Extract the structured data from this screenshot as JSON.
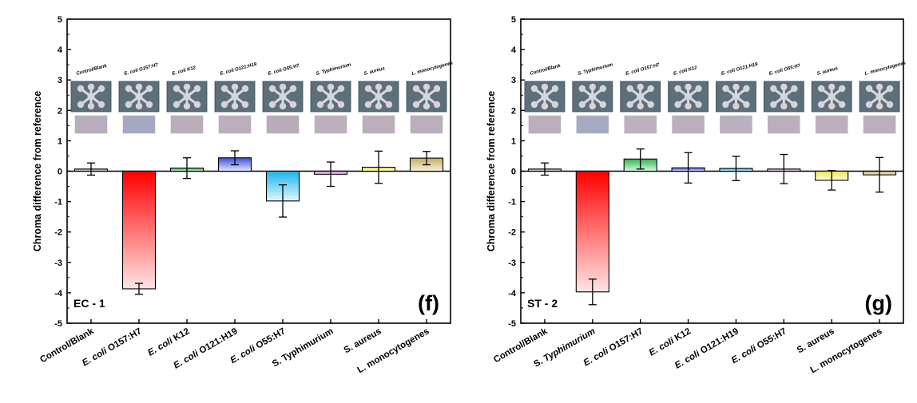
{
  "chart_data": [
    {
      "type": "bar",
      "panel_label": "(f)",
      "sample_label": "EC - 1",
      "ylabel": "Chroma difference from reference",
      "ylim": [
        -5,
        5
      ],
      "yticks": [
        -5,
        -4,
        -3,
        -2,
        -1,
        0,
        1,
        2,
        3,
        4,
        5
      ],
      "categories": [
        "Control/Blank",
        "E. coli O157:H7",
        "E. coli K12",
        "E. coli O121:H19",
        "E. coli O55:H7",
        "S. Typhimurium",
        "S. aureus",
        "L. monocytogenes"
      ],
      "tick_labels": [
        {
          "parts": [
            {
              "t": "Control/Blank",
              "i": false
            }
          ]
        },
        {
          "parts": [
            {
              "t": "E. coli",
              "i": true
            },
            {
              "t": " O157:H7",
              "i": false
            }
          ]
        },
        {
          "parts": [
            {
              "t": "E. coli",
              "i": true
            },
            {
              "t": " K12",
              "i": false
            }
          ]
        },
        {
          "parts": [
            {
              "t": "E. coli",
              "i": true
            },
            {
              "t": " O121:H19",
              "i": false
            }
          ]
        },
        {
          "parts": [
            {
              "t": "E. coli",
              "i": true
            },
            {
              "t": " O55:H7",
              "i": false
            }
          ]
        },
        {
          "parts": [
            {
              "t": "S. Typhimurium",
              "i": false
            }
          ]
        },
        {
          "parts": [
            {
              "t": "S. aureus",
              "i": false
            }
          ]
        },
        {
          "parts": [
            {
              "t": "L. monocytogenes",
              "i": false
            }
          ]
        }
      ],
      "image_labels": [
        "Control/Blank",
        "E. coli O157:H7",
        "E. coli K12",
        "E. coli O121:H19",
        "E. coli O55:H7",
        "S. Typhimurium",
        "S. aureus",
        "L. monocytogenes"
      ],
      "swatch_colors": [
        "#b8adbc",
        "#a4a8c0",
        "#bbaebb",
        "#bcaebc",
        "#b9acba",
        "#bdb0bd",
        "#bcafbb",
        "#bcafbc"
      ],
      "values": [
        0.07,
        -3.87,
        0.1,
        0.44,
        -0.98,
        -0.1,
        0.13,
        0.43
      ],
      "errors": [
        0.2,
        0.18,
        0.34,
        0.23,
        0.53,
        0.4,
        0.53,
        0.22
      ],
      "bar_colors": [
        {
          "top": "#9a9a9a",
          "bottom": "#f2f2f2"
        },
        {
          "top": "#ff0000",
          "bottom": "#ffe5e5"
        },
        {
          "top": "#2fb54a",
          "bottom": "#dff5e3"
        },
        {
          "top": "#3c4fd6",
          "bottom": "#e6e9ff"
        },
        {
          "top": "#19b6e8",
          "bottom": "#e2f6fd"
        },
        {
          "top": "#d979e6",
          "bottom": "#faeafc"
        },
        {
          "top": "#f2e44f",
          "bottom": "#fdfbe0"
        },
        {
          "top": "#c4ad5e",
          "bottom": "#f7f1dc"
        }
      ]
    },
    {
      "type": "bar",
      "panel_label": "(g)",
      "sample_label": "ST - 2",
      "ylabel": "Chroma difference from reference",
      "ylim": [
        -5,
        5
      ],
      "yticks": [
        -5,
        -4,
        -3,
        -2,
        -1,
        0,
        1,
        2,
        3,
        4,
        5
      ],
      "categories": [
        "Control/Blank",
        "S. Typhimurium",
        "E. coli O157:H7",
        "E. coli K12",
        "E. coli O121:H19",
        "E. coli O55:H7",
        "S. aureus",
        "L. monocytogenes"
      ],
      "tick_labels": [
        {
          "parts": [
            {
              "t": "Control/Blank",
              "i": false
            }
          ]
        },
        {
          "parts": [
            {
              "t": "S. ",
              "i": false
            },
            {
              "t": "Typhimurium",
              "i": true
            }
          ]
        },
        {
          "parts": [
            {
              "t": "E. coli",
              "i": true
            },
            {
              "t": " O157:H7",
              "i": false
            }
          ]
        },
        {
          "parts": [
            {
              "t": "E. coli",
              "i": true
            },
            {
              "t": " K12",
              "i": false
            }
          ]
        },
        {
          "parts": [
            {
              "t": "E. coli",
              "i": true
            },
            {
              "t": " O121:H19",
              "i": false
            }
          ]
        },
        {
          "parts": [
            {
              "t": "E. coli",
              "i": true
            },
            {
              "t": " O55:H7",
              "i": false
            }
          ]
        },
        {
          "parts": [
            {
              "t": "S. aureus",
              "i": false
            }
          ]
        },
        {
          "parts": [
            {
              "t": "L. monocytogenes",
              "i": false
            }
          ]
        }
      ],
      "image_labels": [
        "Control/Blank",
        "S. Typhimurium",
        "E. coli O157:H7",
        "E. coli K12",
        "E. coli O121:H19",
        "E. coli O55:H7",
        "S. aureus",
        "L. monocytogenes"
      ],
      "swatch_colors": [
        "#bcaebd",
        "#a5aac2",
        "#bdb1bf",
        "#bcafbd",
        "#b9b0c0",
        "#bcafbc",
        "#bdb0bc",
        "#bcafbc"
      ],
      "values": [
        0.07,
        -3.97,
        0.4,
        0.11,
        0.09,
        0.07,
        -0.3,
        -0.12
      ],
      "errors": [
        0.2,
        0.42,
        0.33,
        0.5,
        0.4,
        0.48,
        0.32,
        0.57
      ],
      "bar_colors": [
        {
          "top": "#9a9a9a",
          "bottom": "#f2f2f2"
        },
        {
          "top": "#ff0000",
          "bottom": "#ffe5e5"
        },
        {
          "top": "#2fb54a",
          "bottom": "#dff5e3"
        },
        {
          "top": "#3c4fd6",
          "bottom": "#e6e9ff"
        },
        {
          "top": "#19b6e8",
          "bottom": "#e2f6fd"
        },
        {
          "top": "#d979e6",
          "bottom": "#faeafc"
        },
        {
          "top": "#f2e44f",
          "bottom": "#fdfbe0"
        },
        {
          "top": "#c4ad5e",
          "bottom": "#f7f1dc"
        }
      ]
    }
  ]
}
